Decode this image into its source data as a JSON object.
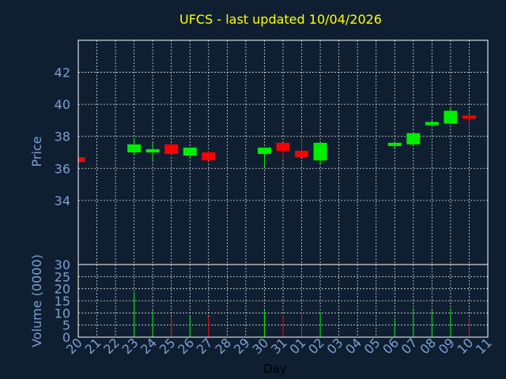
{
  "chart_data": {
    "type": "candlestick",
    "title": "UFCS - last updated 10/04/2026",
    "price_axis": {
      "ylabel": "Price",
      "ylim": [
        30,
        44
      ],
      "ticks": [
        "30",
        "34",
        "36",
        "38",
        "40",
        "42"
      ],
      "tick_values": [
        30,
        34,
        36,
        38,
        40,
        42
      ],
      "grid": true
    },
    "volume_axis": {
      "ylabel": "Volume (0000)",
      "ylim": [
        0,
        30
      ],
      "ticks": [
        "0",
        "5",
        "10",
        "15",
        "20",
        "25"
      ],
      "tick_values": [
        0,
        5,
        10,
        15,
        20,
        25
      ],
      "grid": true
    },
    "xlabel": "Day",
    "x_ticks": [
      "20",
      "21",
      "22",
      "23",
      "24",
      "25",
      "26",
      "27",
      "28",
      "29",
      "30",
      "31",
      "01",
      "02",
      "03",
      "04",
      "05",
      "06",
      "07",
      "08",
      "09",
      "10",
      "11"
    ],
    "colors": {
      "up": "#00ee00",
      "down": "#ff0000"
    },
    "candles": [
      {
        "x": "20",
        "open": 36.7,
        "close": 36.4,
        "high": 36.7,
        "low": 36.4,
        "volume": 0
      },
      {
        "x": "23",
        "open": 37.0,
        "close": 37.5,
        "high": 37.9,
        "low": 36.8,
        "volume": 18.5
      },
      {
        "x": "24",
        "open": 37.0,
        "close": 37.2,
        "high": 37.6,
        "low": 36.5,
        "volume": 11
      },
      {
        "x": "25",
        "open": 37.5,
        "close": 36.9,
        "high": 37.6,
        "low": 36.8,
        "volume": 8.5
      },
      {
        "x": "26",
        "open": 36.8,
        "close": 37.3,
        "high": 37.3,
        "low": 36.6,
        "volume": 8.5
      },
      {
        "x": "27",
        "open": 37.0,
        "close": 36.5,
        "high": 37.1,
        "low": 36.5,
        "volume": 8.5
      },
      {
        "x": "30",
        "open": 36.9,
        "close": 37.3,
        "high": 37.3,
        "low": 36.1,
        "volume": 11
      },
      {
        "x": "31",
        "open": 37.6,
        "close": 37.1,
        "high": 37.6,
        "low": 36.5,
        "volume": 9
      },
      {
        "x": "01",
        "open": 37.1,
        "close": 36.7,
        "high": 38.1,
        "low": 36.7,
        "volume": 10.5
      },
      {
        "x": "02",
        "open": 36.5,
        "close": 37.6,
        "high": 37.6,
        "low": 36.3,
        "volume": 10.5
      },
      {
        "x": "06",
        "open": 37.4,
        "close": 37.6,
        "high": 37.7,
        "low": 37.2,
        "volume": 7
      },
      {
        "x": "07",
        "open": 37.5,
        "close": 38.2,
        "high": 38.2,
        "low": 37.5,
        "volume": 12
      },
      {
        "x": "08",
        "open": 38.7,
        "close": 38.9,
        "high": 39.0,
        "low": 38.6,
        "volume": 11
      },
      {
        "x": "09",
        "open": 38.8,
        "close": 39.6,
        "high": 39.8,
        "low": 38.8,
        "volume": 12
      },
      {
        "x": "10",
        "open": 39.3,
        "close": 39.1,
        "high": 39.3,
        "low": 38.4,
        "volume": 8
      }
    ]
  }
}
